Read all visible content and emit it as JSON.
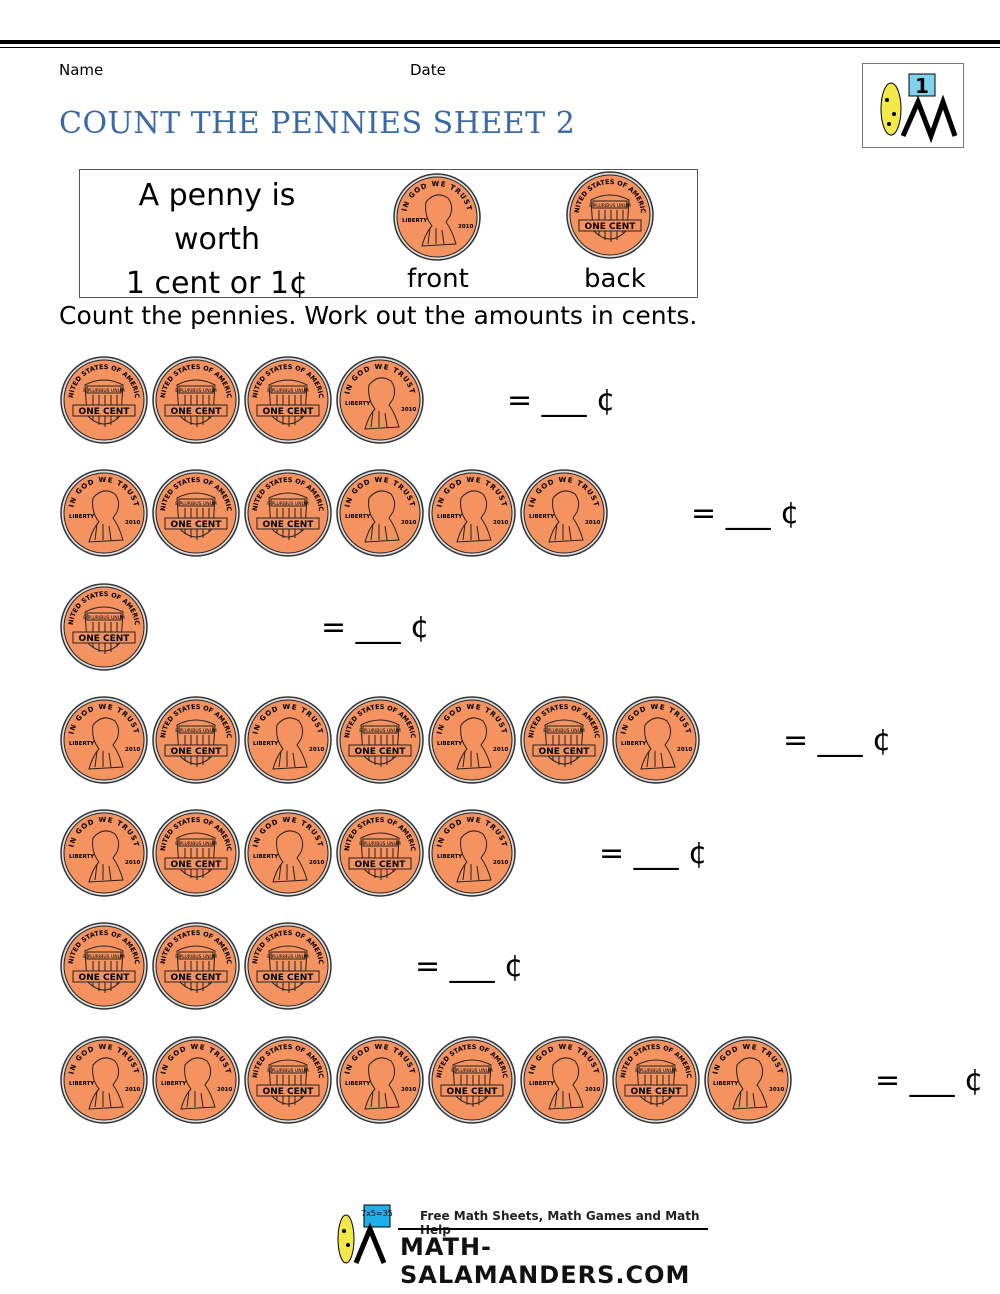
{
  "header": {
    "name_label": "Name",
    "date_label": "Date",
    "title": "COUNT THE PENNIES SHEET 2",
    "logo_number": "1"
  },
  "info": {
    "line1": "A penny is worth",
    "line2": "1 cent or 1¢",
    "front_caption": "front",
    "back_caption": "back"
  },
  "instruction": "Count the pennies. Work out the amounts in cents.",
  "coin": {
    "color": "#f4935f",
    "front_text": {
      "motto": "IN GOD WE TRUST",
      "left": "LIBERTY",
      "year": "2010"
    },
    "back_text": {
      "rim": "UNITED STATES OF AMERICA",
      "banner": "E PLURIBUS UNUM",
      "scroll": "ONE CENT"
    }
  },
  "problems": [
    {
      "coins": [
        "back",
        "back",
        "back",
        "front"
      ],
      "answer": "= ___ ¢"
    },
    {
      "coins": [
        "front",
        "back",
        "back",
        "front",
        "front",
        "front"
      ],
      "answer": "= ___ ¢"
    },
    {
      "coins": [
        "back"
      ],
      "answer": "= ___ ¢"
    },
    {
      "coins": [
        "front",
        "back",
        "front",
        "back",
        "front",
        "back",
        "front"
      ],
      "answer": "= ___ ¢"
    },
    {
      "coins": [
        "front",
        "back",
        "front",
        "back",
        "front"
      ],
      "answer": "= ___ ¢"
    },
    {
      "coins": [
        "back",
        "back",
        "back"
      ],
      "answer": "= ___ ¢"
    },
    {
      "coins": [
        "front",
        "front",
        "back",
        "front",
        "back",
        "front",
        "back",
        "front"
      ],
      "answer": "= ___ ¢"
    }
  ],
  "footer": {
    "tagline": "Free Math Sheets, Math Games and Math Help",
    "site": "MATH-SALAMANDERS.COM",
    "board": "7x5=35"
  }
}
